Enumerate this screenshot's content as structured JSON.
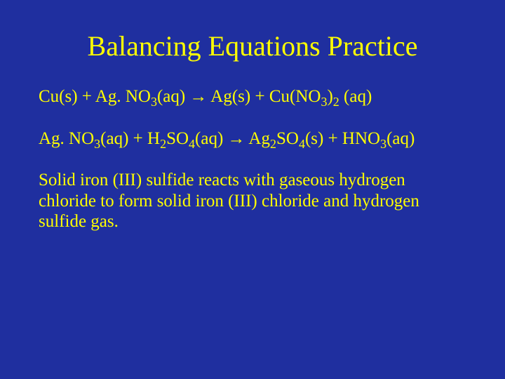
{
  "slide": {
    "background_color": "#1f2f9f",
    "text_color": "#ffff00",
    "title": {
      "text": "Balancing Equations Practice",
      "fontsize": 40
    },
    "body_fontsize": 25,
    "eq1": {
      "p1": "Cu(s) + Ag. NO",
      "s1": "3",
      "p2": "(aq) → Ag(s) + Cu(NO",
      "s2": "3",
      "p3": ")",
      "s3": "2",
      "p4": " (aq)"
    },
    "eq2": {
      "p1": "Ag. NO",
      "s1": "3",
      "p2": "(aq) + H",
      "s2": "2",
      "p3": "SO",
      "s3": "4",
      "p4": "(aq) → Ag",
      "s4": "2",
      "p5": "SO",
      "s5": "4",
      "p6": "(s) + HNO",
      "s6": "3",
      "p7": "(aq)"
    },
    "desc": {
      "text": "Solid iron (III) sulfide reacts with gaseous hydrogen chloride to form solid iron (III) chloride and hydrogen sulfide gas."
    }
  }
}
